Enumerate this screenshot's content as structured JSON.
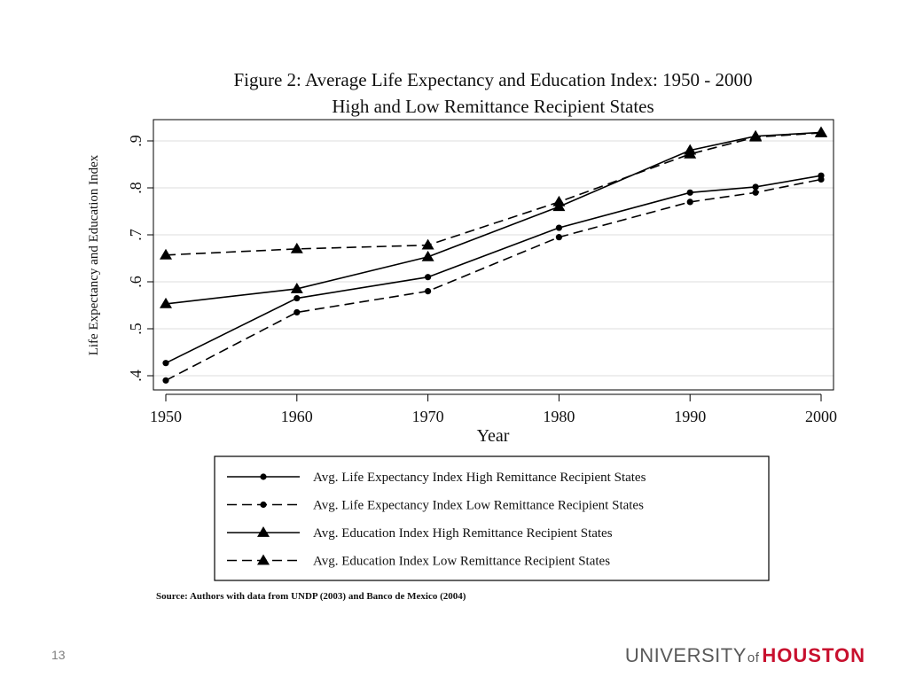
{
  "slide": {
    "number": "13",
    "logo": {
      "university": "UNIVERSITY",
      "of": "of",
      "houston": "HOUSTON",
      "accent": "#c8102e"
    }
  },
  "chart_data": {
    "type": "line",
    "title": "Figure 2: Average Life Expectancy and Education Index: 1950 - 2000",
    "subtitle": "High and Low Remittance Recipient States",
    "xlabel": "Year",
    "ylabel": "Life Expectancy and Education Index",
    "x": [
      1950,
      1960,
      1970,
      1980,
      1990,
      1995,
      2000
    ],
    "xticks": [
      "1950",
      "1960",
      "1970",
      "1980",
      "1990",
      "2000"
    ],
    "yticks": [
      ".4",
      ".5",
      ".6",
      ".7",
      ".8",
      ".9"
    ],
    "xlim": [
      1950,
      2000
    ],
    "ylim": [
      0.38,
      0.95
    ],
    "grid": true,
    "legend_position": "bottom",
    "series": [
      {
        "name": "Avg. Life Expectancy Index High Remittance Recipient States",
        "marker": "circle",
        "dash": "solid",
        "values": [
          0.427,
          0.565,
          0.61,
          0.715,
          0.79,
          0.802,
          0.826
        ]
      },
      {
        "name": "Avg. Life Expectancy Index Low Remittance Recipient States",
        "marker": "circle",
        "dash": "dashed",
        "values": [
          0.39,
          0.535,
          0.58,
          0.695,
          0.77,
          0.79,
          0.818
        ]
      },
      {
        "name": "Avg. Education Index High Remittance Recipient States",
        "marker": "triangle",
        "dash": "solid",
        "values": [
          0.553,
          0.585,
          0.653,
          0.76,
          0.88,
          0.91,
          0.918
        ]
      },
      {
        "name": "Avg. Education Index Low Remittance Recipient States",
        "marker": "triangle",
        "dash": "dashed",
        "values": [
          0.657,
          0.67,
          0.678,
          0.77,
          0.872,
          0.908,
          0.917
        ]
      }
    ],
    "source": "Source: Authors with data from UNDP (2003) and Banco de Mexico (2004)"
  }
}
